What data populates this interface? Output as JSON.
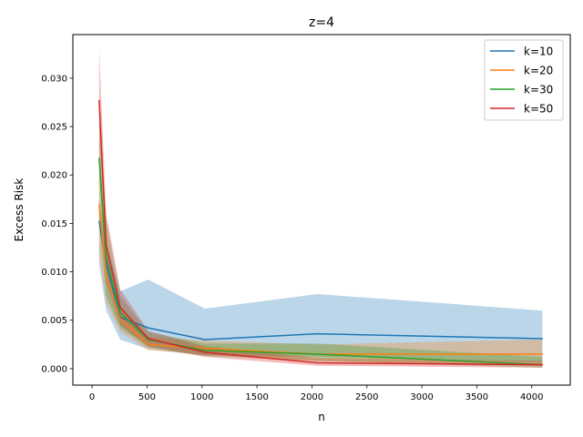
{
  "chart_data": {
    "type": "line",
    "title": "z=4",
    "xlabel": "n",
    "ylabel": "Excess Risk",
    "xlim": [
      -175,
      4350
    ],
    "ylim": [
      -0.0017,
      0.0345
    ],
    "x": [
      64,
      128,
      256,
      512,
      1024,
      2048,
      4096
    ],
    "xticks": [
      0,
      500,
      1000,
      1500,
      2000,
      2500,
      3000,
      3500,
      4000
    ],
    "xtick_labels": [
      "0",
      "500",
      "1000",
      "1500",
      "2000",
      "2500",
      "3000",
      "3500",
      "4000"
    ],
    "yticks": [
      0.0,
      0.005,
      0.01,
      0.015,
      0.02,
      0.025,
      0.03
    ],
    "ytick_labels": [
      "0.000",
      "0.005",
      "0.010",
      "0.015",
      "0.020",
      "0.025",
      "0.030"
    ],
    "grid": false,
    "legend_position": "top-right",
    "series": [
      {
        "name": "k=10",
        "color": "#1f77b4",
        "values": [
          0.0152,
          0.0108,
          0.0053,
          0.0042,
          0.003,
          0.0036,
          0.0031
        ],
        "lower": [
          0.0108,
          0.006,
          0.003,
          0.002,
          0.0014,
          0.0012,
          0.0007
        ],
        "upper": [
          0.0175,
          0.013,
          0.008,
          0.0092,
          0.0062,
          0.0077,
          0.006
        ]
      },
      {
        "name": "k=20",
        "color": "#ff7f0e",
        "values": [
          0.0169,
          0.0098,
          0.0051,
          0.0025,
          0.0021,
          0.0015,
          0.0015
        ],
        "lower": [
          0.0118,
          0.0068,
          0.0038,
          0.0019,
          0.0014,
          0.0008,
          0.0003
        ],
        "upper": [
          0.0205,
          0.0125,
          0.0065,
          0.0033,
          0.0029,
          0.0025,
          0.003
        ]
      },
      {
        "name": "k=30",
        "color": "#2ca02c",
        "values": [
          0.0217,
          0.0115,
          0.0058,
          0.003,
          0.0019,
          0.0015,
          0.0004
        ],
        "lower": [
          0.0155,
          0.0075,
          0.0042,
          0.0022,
          0.0013,
          0.0008,
          0.0001
        ],
        "upper": [
          0.0265,
          0.0155,
          0.0075,
          0.0038,
          0.0026,
          0.0026,
          0.0012
        ]
      },
      {
        "name": "k=50",
        "color": "#d62728",
        "values": [
          0.0277,
          0.0128,
          0.0063,
          0.0031,
          0.0017,
          0.0006,
          0.0004
        ],
        "lower": [
          0.0205,
          0.009,
          0.0045,
          0.0023,
          0.0012,
          0.0003,
          0.0001
        ],
        "upper": [
          0.033,
          0.016,
          0.0082,
          0.0039,
          0.0023,
          0.0011,
          0.0008
        ]
      }
    ]
  }
}
